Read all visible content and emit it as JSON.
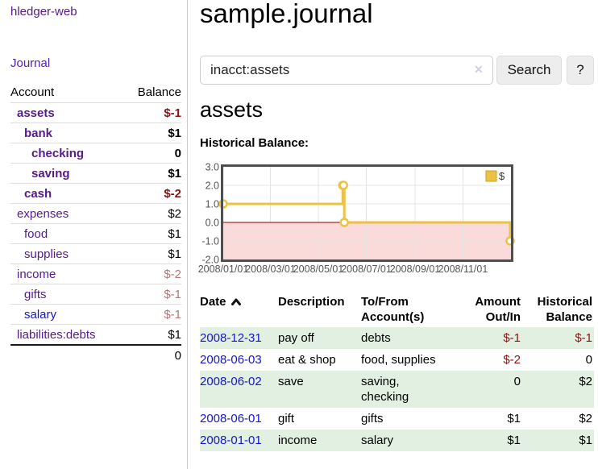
{
  "app": {
    "title": "hledger-web"
  },
  "sidebar": {
    "nav_journal": "Journal",
    "accounts": {
      "header_account": "Account",
      "header_balance": "Balance",
      "rows": [
        {
          "name": "assets",
          "indent": 1,
          "bold": true,
          "balance": "$-1",
          "balance_tone": "negative",
          "link_tone": "purple"
        },
        {
          "name": "bank",
          "indent": 2,
          "bold": true,
          "balance": "$1",
          "balance_tone": "normal",
          "link_tone": "purple"
        },
        {
          "name": "checking",
          "indent": 3,
          "bold": true,
          "balance": "0",
          "balance_tone": "normal",
          "link_tone": "purple"
        },
        {
          "name": "saving",
          "indent": 3,
          "bold": true,
          "balance": "$1",
          "balance_tone": "normal",
          "link_tone": "purple"
        },
        {
          "name": "cash",
          "indent": 2,
          "bold": true,
          "balance": "$-2",
          "balance_tone": "negative",
          "link_tone": "purple"
        },
        {
          "name": "expenses",
          "indent": 1,
          "bold": false,
          "balance": "$2",
          "balance_tone": "normal",
          "link_tone": "purple"
        },
        {
          "name": "food",
          "indent": 2,
          "bold": false,
          "balance": "$1",
          "balance_tone": "normal",
          "link_tone": "purple"
        },
        {
          "name": "supplies",
          "indent": 2,
          "bold": false,
          "balance": "$1",
          "balance_tone": "normal",
          "link_tone": "purple"
        },
        {
          "name": "income",
          "indent": 1,
          "bold": false,
          "balance": "$-2",
          "balance_tone": "negative_muted",
          "link_tone": "purple"
        },
        {
          "name": "gifts",
          "indent": 2,
          "bold": false,
          "balance": "$-1",
          "balance_tone": "negative_muted",
          "link_tone": "purple"
        },
        {
          "name": "salary",
          "indent": 2,
          "bold": false,
          "balance": "$-1",
          "balance_tone": "negative_muted",
          "link_tone": "blue"
        },
        {
          "name": "liabilities:debts",
          "indent": 1,
          "bold": false,
          "balance": "$1",
          "balance_tone": "normal",
          "link_tone": "purple"
        }
      ],
      "total": "0"
    }
  },
  "main": {
    "title": "sample.journal",
    "search": {
      "value": "inacct:assets",
      "clear_icon": "✕",
      "button_label": "Search",
      "help_label": "?"
    },
    "account_heading": "assets",
    "chart_label": "Historical Balance:"
  },
  "chart_data": {
    "type": "line",
    "title": "Historical Balance",
    "series": [
      {
        "name": "$",
        "color": "#edc240",
        "step": true,
        "points": [
          [
            "2008-01-01",
            1
          ],
          [
            "2008-06-01",
            2
          ],
          [
            "2008-06-02",
            2
          ],
          [
            "2008-06-03",
            0
          ],
          [
            "2008-12-31",
            -1
          ]
        ]
      }
    ],
    "x_range": [
      "2008-01-01",
      "2009-01-01"
    ],
    "x_ticks": [
      "2008/01/01",
      "2008/03/01",
      "2008/05/01",
      "2008/07/01",
      "2008/09/01",
      "2008/11/01"
    ],
    "y_ticks": [
      "3.0",
      "2.0",
      "1.0",
      "0.0",
      "-1.0",
      "-2.0"
    ],
    "ylim": [
      -2,
      3
    ],
    "legend": {
      "label": "$",
      "position": "top-right"
    },
    "grid": true,
    "colors": {
      "line": "#edc240",
      "marker_fill": "#ffffff",
      "marker_stroke": "#edc240",
      "legend_square": "#edc240",
      "legend_square_border": "#c9a32b",
      "negative_region": "#fbdada",
      "zero_line": "#8b0000",
      "grid": "#e4e4e4",
      "border": "#4f4f4f",
      "tick_text": "#545454"
    }
  },
  "register": {
    "headers": {
      "date": "Date",
      "sort": "ascending",
      "description": "Description",
      "accounts_line1": "To/From",
      "accounts_line2": "Account(s)",
      "amount_line1": "Amount",
      "amount_line2": "Out/In",
      "balance_line1": "Historical",
      "balance_line2": "Balance"
    },
    "rows": [
      {
        "date": "2008-12-31",
        "description": "pay off",
        "accounts": "debts",
        "amount": "$-1",
        "amount_tone": "negative",
        "balance": "$-1",
        "balance_tone": "negative"
      },
      {
        "date": "2008-06-03",
        "description": "eat & shop",
        "accounts": "food, supplies",
        "amount": "$-2",
        "amount_tone": "negative",
        "balance": "0",
        "balance_tone": "normal"
      },
      {
        "date": "2008-06-02",
        "description": "save",
        "accounts": "saving, checking",
        "amount": "0",
        "amount_tone": "normal",
        "balance": "$2",
        "balance_tone": "normal"
      },
      {
        "date": "2008-06-01",
        "description": "gift",
        "accounts": "gifts",
        "amount": "$1",
        "amount_tone": "normal",
        "balance": "$2",
        "balance_tone": "normal"
      },
      {
        "date": "2008-01-01",
        "description": "income",
        "accounts": "salary",
        "amount": "$1",
        "amount_tone": "normal",
        "balance": "$1",
        "balance_tone": "normal"
      }
    ]
  }
}
